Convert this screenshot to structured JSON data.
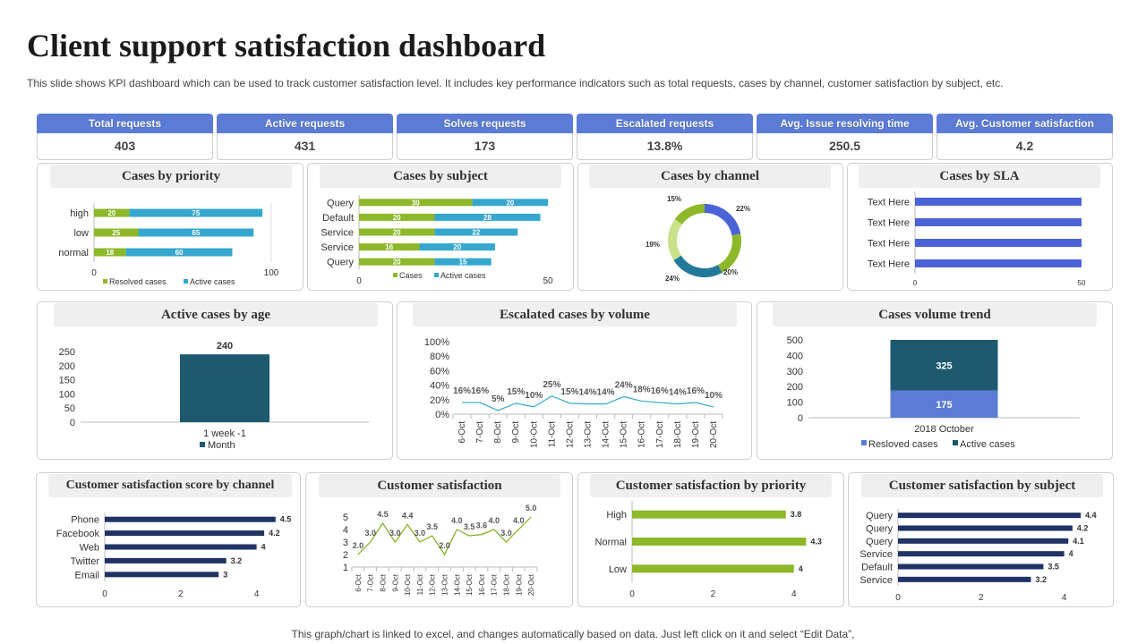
{
  "title": "Client support satisfaction dashboard",
  "subtitle": "This slide shows KPI dashboard which can be used to track customer satisfaction level. It includes key performance indicators such as total requests, cases by channel, customer satisfaction by subject, etc.",
  "footer": "This graph/chart is linked to excel,  and changes automatically based on data. Just left click on it and select “Edit Data”,",
  "kpis": [
    {
      "label": "Total requests",
      "value": "403"
    },
    {
      "label": "Active requests",
      "value": "431"
    },
    {
      "label": "Solves requests",
      "value": "173"
    },
    {
      "label": "Escalated  requests",
      "value": "13.8%"
    },
    {
      "label": "Avg. Issue resolving time",
      "value": "250.5"
    },
    {
      "label": "Avg. Customer satisfaction",
      "value": "4.2"
    }
  ],
  "colors": {
    "green": "#8db82a",
    "blue": "#35a7cf",
    "navy": "#1f3364",
    "teal": "#1d5a70",
    "kpi": "#5b7bd5",
    "sla": "#4b63d6",
    "lightgreen": "#c9e28a",
    "line": "#35a7cf"
  },
  "chart_data": [
    {
      "id": "priority",
      "type": "bar",
      "orientation": "horizontal",
      "stacked": true,
      "title": "Cases by priority",
      "categories": [
        "high",
        "low",
        "normal"
      ],
      "series": [
        {
          "name": "Resolved cases",
          "values": [
            20,
            25,
            18
          ]
        },
        {
          "name": "Active cases",
          "values": [
            75,
            65,
            60
          ]
        }
      ],
      "xlim": [
        0,
        100
      ],
      "xticks": [
        "0",
        "100"
      ],
      "legend": "bottom"
    },
    {
      "id": "subject",
      "type": "bar",
      "orientation": "horizontal",
      "stacked": true,
      "title": "Cases by subject",
      "categories": [
        "Query",
        "Default",
        "Service",
        "Service",
        "Query"
      ],
      "series": [
        {
          "name": "Cases",
          "values": [
            30,
            20,
            20,
            16,
            20
          ]
        },
        {
          "name": "Active cases",
          "values": [
            20,
            28,
            22,
            20,
            15
          ]
        }
      ],
      "xlim": [
        0,
        50
      ],
      "xticks": [
        "0",
        "50"
      ],
      "legend": "bottom"
    },
    {
      "id": "channel",
      "type": "pie",
      "donut": true,
      "title": "Cases by channel",
      "labels": [
        "22%",
        "20%",
        "24%",
        "19%",
        "15%"
      ],
      "values": [
        22,
        20,
        24,
        19,
        15
      ]
    },
    {
      "id": "sla",
      "type": "bar",
      "orientation": "horizontal",
      "title": "Cases by SLA",
      "categories": [
        "Text Here",
        "Text Here",
        "Text Here",
        "Text Here"
      ],
      "values": [
        50,
        50,
        50,
        50
      ],
      "xlim": [
        0,
        50
      ],
      "xticks": [
        "0",
        "50"
      ]
    },
    {
      "id": "age",
      "type": "bar",
      "title": "Active cases by age",
      "categories": [
        "1 week -1"
      ],
      "values": [
        240
      ],
      "ylim": [
        0,
        250
      ],
      "yticks": [
        "250",
        "200",
        "150",
        "100",
        "50",
        "0"
      ],
      "legend_label": "Month"
    },
    {
      "id": "escalated",
      "type": "line",
      "title": "Escalated cases by volume",
      "x": [
        "6-Oct",
        "7-Oct",
        "8-Oct",
        "9-Oct",
        "10-Oct",
        "11-Oct",
        "12-Oct",
        "13-Oct",
        "14-Oct",
        "15-Oct",
        "16-Oct",
        "17-Oct",
        "18-Oct",
        "19-Oct",
        "20-Oct"
      ],
      "values": [
        16,
        16,
        5,
        15,
        10,
        25,
        15,
        14,
        14,
        24,
        18,
        16,
        14,
        16,
        10
      ],
      "labels": [
        "16%",
        "16%",
        "5%",
        "15%",
        "10%",
        "25%",
        "15%",
        "14%",
        "14%",
        "24%",
        "18%",
        "16%",
        "14%",
        "16%",
        "10%"
      ],
      "ylim": [
        0,
        100
      ],
      "yticks": [
        "100%",
        "80%",
        "60%",
        "40%",
        "20%",
        "0%"
      ]
    },
    {
      "id": "trend",
      "type": "bar",
      "stacked": true,
      "title": "Cases volume trend",
      "categories": [
        "2018 October"
      ],
      "series": [
        {
          "name": "Resloved cases",
          "values": [
            175
          ]
        },
        {
          "name": "Active cases",
          "values": [
            325
          ]
        }
      ],
      "labels": [
        "175",
        "325"
      ],
      "ylim": [
        0,
        500
      ],
      "yticks": [
        "500",
        "400",
        "300",
        "200",
        "100",
        "0"
      ]
    },
    {
      "id": "score_channel",
      "type": "bar",
      "orientation": "horizontal",
      "title": "Customer satisfaction score by channel",
      "categories": [
        "Phone",
        "Facebook",
        "Web",
        "Twitter",
        "Email"
      ],
      "values": [
        4.5,
        4.2,
        4,
        3.2,
        3
      ],
      "labels": [
        "4.5",
        "4.2",
        "4",
        "3.2",
        "3"
      ],
      "xlim": [
        0,
        5
      ],
      "xticks": [
        "0",
        "2",
        "4"
      ]
    },
    {
      "id": "satisfaction",
      "type": "line",
      "title": "Customer satisfaction",
      "x": [
        "6-Oct",
        "7-Oct",
        "8-Oct",
        "9-Oct",
        "10-Oct",
        "11-Oct",
        "12-Oct",
        "13-Oct",
        "14-Oct",
        "15-Oct",
        "16-Oct",
        "17-Oct",
        "18-Oct",
        "19-Oct",
        "20-Oct"
      ],
      "values": [
        2.0,
        3.0,
        4.5,
        3.0,
        4.4,
        3.0,
        3.5,
        2.0,
        4.0,
        3.5,
        3.6,
        4.0,
        3.0,
        4.0,
        5.0
      ],
      "labels": [
        "2.0",
        "3.0",
        "4.5",
        "3.0",
        "4.4",
        "3.0",
        "3.5",
        "2.0",
        "4.0",
        "3.5",
        "3.6",
        "4.0",
        "3.0",
        "4.0",
        "5.0"
      ],
      "ylim": [
        1,
        5
      ],
      "yticks": [
        "5",
        "4",
        "3",
        "2",
        "1"
      ]
    },
    {
      "id": "score_priority",
      "type": "bar",
      "orientation": "horizontal",
      "title": "Customer satisfaction by priority",
      "categories": [
        "High",
        "Normal",
        "Low"
      ],
      "values": [
        3.8,
        4.3,
        4
      ],
      "labels": [
        "3.8",
        "4.3",
        "4"
      ],
      "xlim": [
        0,
        5
      ],
      "xticks": [
        "0",
        "2",
        "4"
      ]
    },
    {
      "id": "score_subject",
      "type": "bar",
      "orientation": "horizontal",
      "title": "Customer satisfaction by subject",
      "categories": [
        "Query",
        "Query",
        "Query",
        "Service",
        "Default",
        "Service"
      ],
      "values": [
        4.4,
        4.2,
        4.1,
        4,
        3.5,
        3.2
      ],
      "labels": [
        "4.4",
        "4.2",
        "4.1",
        "4",
        "3.5",
        "3.2"
      ],
      "xlim": [
        0,
        5
      ],
      "xticks": [
        "0",
        "2",
        "4"
      ]
    }
  ]
}
